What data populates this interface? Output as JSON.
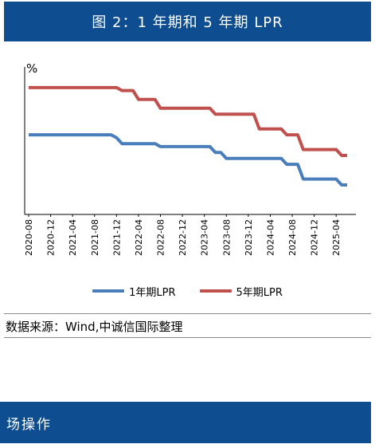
{
  "header": {
    "title": "图 2：1 年期和 5 年期 LPR"
  },
  "chart_data": {
    "type": "line",
    "ylabel": "%",
    "ylim": [
      2.5,
      5.0
    ],
    "x_tick_labels": [
      "2020-08",
      "2020-12",
      "2021-04",
      "2021-08",
      "2021-12",
      "2022-04",
      "2022-08",
      "2022-12",
      "2023-04",
      "2023-08",
      "2023-12",
      "2024-04",
      "2024-08",
      "2024-12",
      "2025-04"
    ],
    "months": [
      "2020-08",
      "2020-09",
      "2020-10",
      "2020-11",
      "2020-12",
      "2021-01",
      "2021-02",
      "2021-03",
      "2021-04",
      "2021-05",
      "2021-06",
      "2021-07",
      "2021-08",
      "2021-09",
      "2021-10",
      "2021-11",
      "2021-12",
      "2022-01",
      "2022-02",
      "2022-03",
      "2022-04",
      "2022-05",
      "2022-06",
      "2022-07",
      "2022-08",
      "2022-09",
      "2022-10",
      "2022-11",
      "2022-12",
      "2023-01",
      "2023-02",
      "2023-03",
      "2023-04",
      "2023-05",
      "2023-06",
      "2023-07",
      "2023-08",
      "2023-09",
      "2023-10",
      "2023-11",
      "2023-12",
      "2024-01",
      "2024-02",
      "2024-03",
      "2024-04",
      "2024-05",
      "2024-06",
      "2024-07",
      "2024-08",
      "2024-09",
      "2024-10",
      "2024-11",
      "2024-12",
      "2025-01",
      "2025-02",
      "2025-03",
      "2025-04",
      "2025-05",
      "2025-06"
    ],
    "series": [
      {
        "name": "1年期LPR",
        "color": "#4a7ebb",
        "values": [
          3.85,
          3.85,
          3.85,
          3.85,
          3.85,
          3.85,
          3.85,
          3.85,
          3.85,
          3.85,
          3.85,
          3.85,
          3.85,
          3.85,
          3.85,
          3.85,
          3.8,
          3.7,
          3.7,
          3.7,
          3.7,
          3.7,
          3.7,
          3.7,
          3.65,
          3.65,
          3.65,
          3.65,
          3.65,
          3.65,
          3.65,
          3.65,
          3.65,
          3.65,
          3.55,
          3.55,
          3.45,
          3.45,
          3.45,
          3.45,
          3.45,
          3.45,
          3.45,
          3.45,
          3.45,
          3.45,
          3.45,
          3.35,
          3.35,
          3.35,
          3.1,
          3.1,
          3.1,
          3.1,
          3.1,
          3.1,
          3.1,
          3.0,
          3.0
        ]
      },
      {
        "name": "5年期LPR",
        "color": "#c0504d",
        "values": [
          4.65,
          4.65,
          4.65,
          4.65,
          4.65,
          4.65,
          4.65,
          4.65,
          4.65,
          4.65,
          4.65,
          4.65,
          4.65,
          4.65,
          4.65,
          4.65,
          4.65,
          4.6,
          4.6,
          4.6,
          4.45,
          4.45,
          4.45,
          4.45,
          4.3,
          4.3,
          4.3,
          4.3,
          4.3,
          4.3,
          4.3,
          4.3,
          4.3,
          4.3,
          4.2,
          4.2,
          4.2,
          4.2,
          4.2,
          4.2,
          4.2,
          4.2,
          3.95,
          3.95,
          3.95,
          3.95,
          3.95,
          3.85,
          3.85,
          3.85,
          3.6,
          3.6,
          3.6,
          3.6,
          3.6,
          3.6,
          3.6,
          3.5,
          3.5
        ]
      }
    ],
    "y_tick_labels": [
      "",
      "",
      "",
      "",
      "",
      ""
    ]
  },
  "legend": {
    "items": [
      "1年期LPR",
      "5年期LPR"
    ]
  },
  "source": "数据来源：Wind,中诚信国际整理",
  "section": {
    "title": "场操作"
  }
}
